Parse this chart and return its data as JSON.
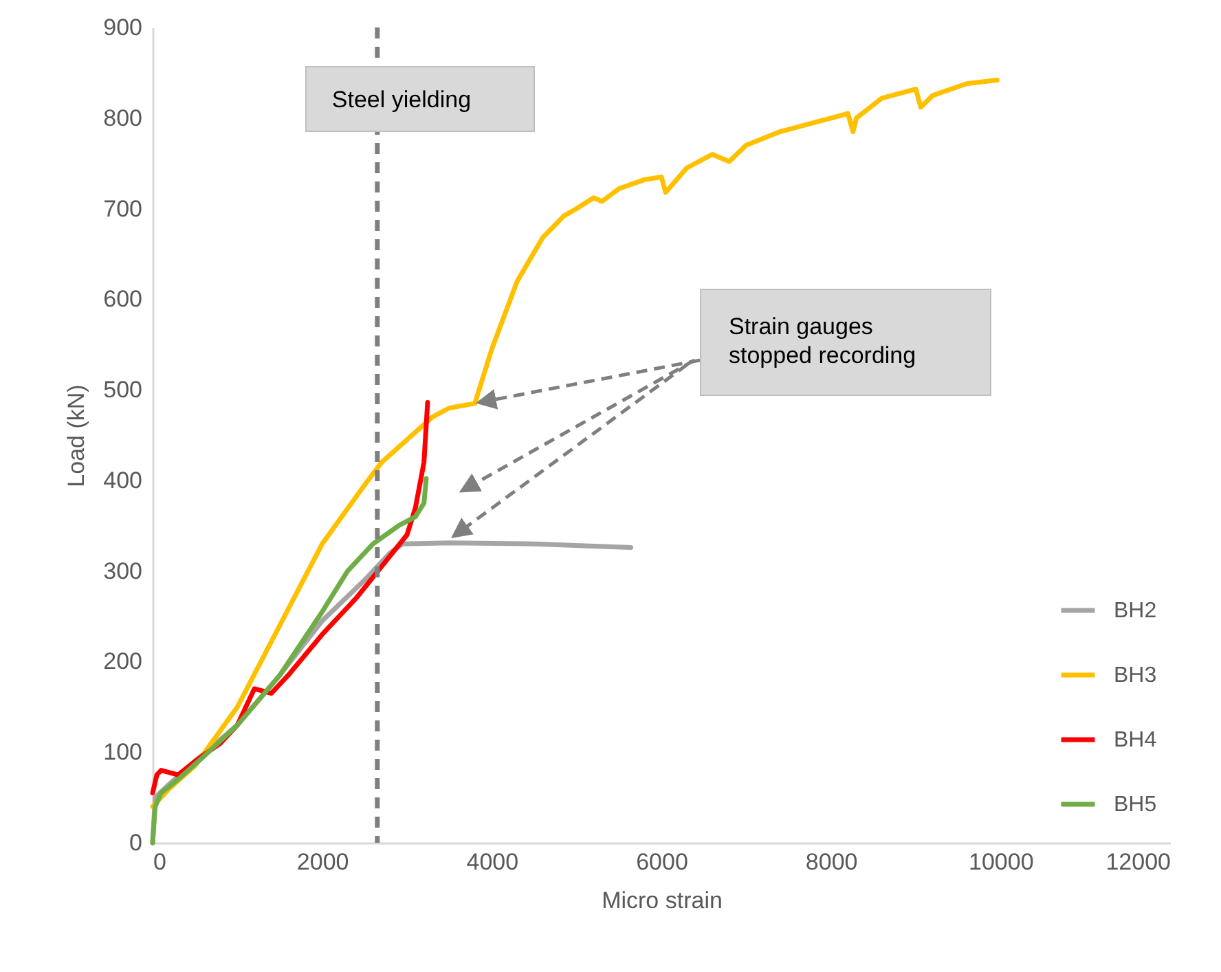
{
  "chart_data": {
    "type": "line",
    "xlabel": "Micro strain",
    "ylabel": "Load (kN)",
    "xlim": [
      0,
      12000
    ],
    "xticks": [
      0,
      2000,
      4000,
      6000,
      8000,
      10000,
      12000
    ],
    "ylim": [
      0,
      900
    ],
    "yticks": [
      0,
      100,
      200,
      300,
      400,
      500,
      600,
      700,
      800,
      900
    ],
    "grid": false,
    "legend": "right",
    "marker": "none",
    "line_style": "solid",
    "series": [
      {
        "name": "BH2",
        "color": "#a5a5a5",
        "x": [
          0,
          30,
          200,
          500,
          1000,
          1500,
          2000,
          2500,
          2800,
          2950,
          3500,
          4500,
          5640
        ],
        "values": [
          0,
          50,
          65,
          90,
          130,
          185,
          245,
          290,
          320,
          330,
          331,
          330,
          326
        ]
      },
      {
        "name": "BH3",
        "color": "#ffc000",
        "x": [
          0,
          200,
          500,
          1000,
          1500,
          2000,
          2500,
          2700,
          3000,
          3300,
          3500,
          3800,
          4000,
          4300,
          4600,
          4850,
          5000,
          5200,
          5300,
          5500,
          5800,
          6000,
          6050,
          6300,
          6600,
          6800,
          7000,
          7400,
          7800,
          8000,
          8200,
          8260,
          8300,
          8600,
          9000,
          9060,
          9200,
          9600,
          9960
        ],
        "values": [
          40,
          60,
          85,
          150,
          240,
          330,
          395,
          420,
          445,
          470,
          480,
          485,
          545,
          620,
          668,
          692,
          700,
          712,
          708,
          722,
          732,
          735,
          718,
          745,
          760,
          752,
          770,
          785,
          795,
          800,
          805,
          785,
          800,
          822,
          832,
          812,
          825,
          838,
          842
        ]
      },
      {
        "name": "BH4",
        "color": "#ff0000",
        "x": [
          0,
          50,
          100,
          300,
          500,
          800,
          1000,
          1100,
          1200,
          1400,
          1600,
          2000,
          2400,
          2700,
          3000,
          3100,
          3200,
          3243
        ],
        "values": [
          55,
          75,
          80,
          75,
          90,
          110,
          130,
          150,
          170,
          165,
          185,
          230,
          270,
          305,
          340,
          370,
          420,
          486
        ]
      },
      {
        "name": "BH5",
        "color": "#70ad47",
        "x": [
          0,
          30,
          100,
          300,
          600,
          1000,
          1500,
          2000,
          2300,
          2600,
          2900,
          3100,
          3200,
          3227
        ],
        "values": [
          0,
          40,
          55,
          70,
          95,
          130,
          185,
          255,
          300,
          330,
          350,
          360,
          375,
          402
        ]
      }
    ],
    "ref_lines": [
      {
        "axis": "x",
        "value": 2650,
        "label": "Steel yielding",
        "color": "#7f7f7f",
        "line_style": "dashed"
      }
    ],
    "annotations": [
      {
        "text": "Strain gauges stopped recording",
        "x": 3850,
        "y": 486
      }
    ]
  }
}
